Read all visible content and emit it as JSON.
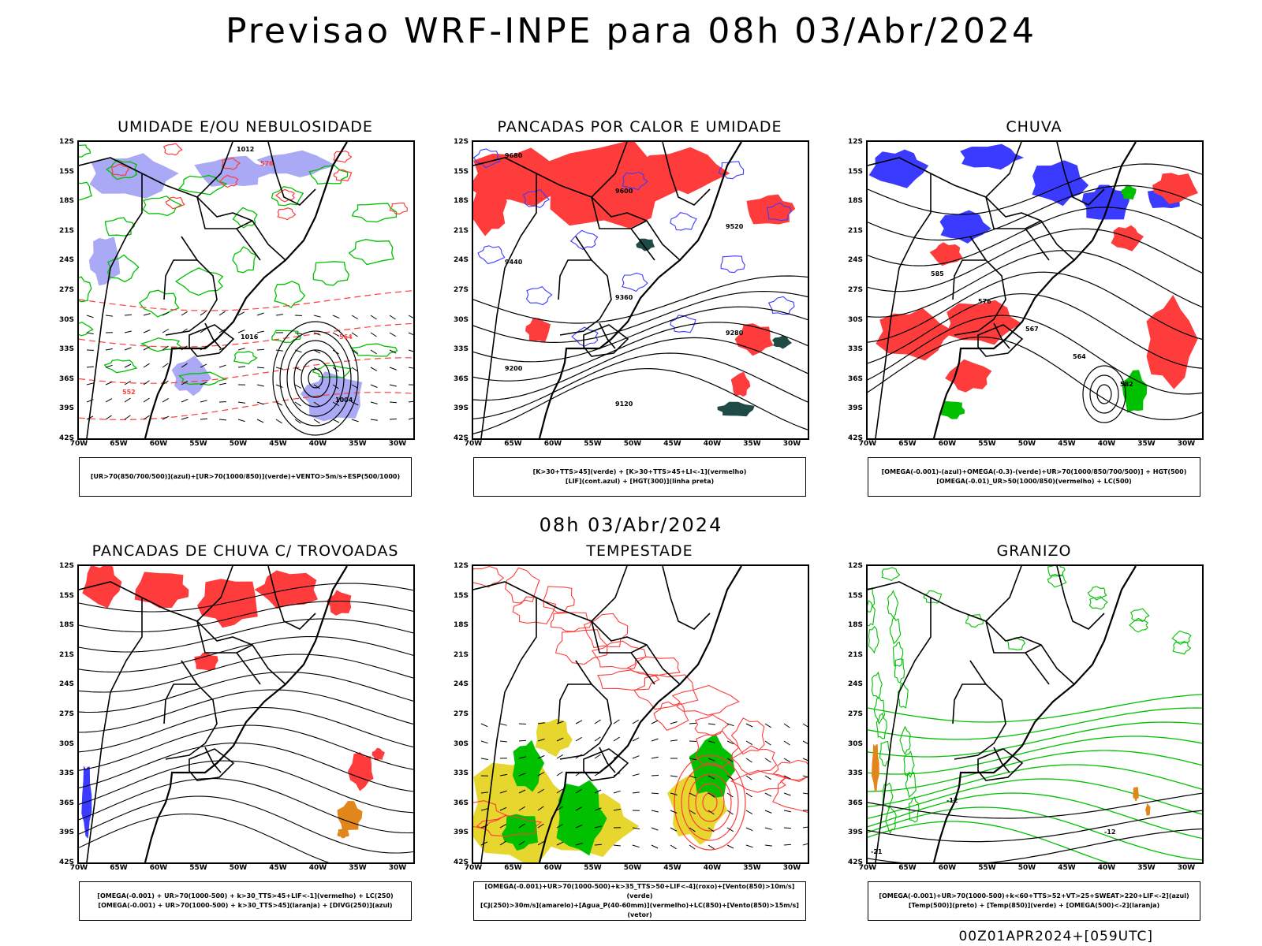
{
  "header": {
    "title": "Previsao WRF-INPE  para 08h 03/Abr/2024"
  },
  "middle": {
    "title": "08h 03/Abr/2024"
  },
  "footer": {
    "stamp": "00Z01APR2024+[059UTC]"
  },
  "axes": {
    "lat_ticks": [
      "12S",
      "15S",
      "18S",
      "21S",
      "24S",
      "27S",
      "30S",
      "33S",
      "36S",
      "39S",
      "42S"
    ],
    "lon_ticks": [
      "70W",
      "65W",
      "60W",
      "55W",
      "50W",
      "45W",
      "40W",
      "35W",
      "30W"
    ]
  },
  "colors": {
    "blue": "#3b3bff",
    "lightblue": "#a9a9f5",
    "green": "#00c000",
    "red": "#ff3c3c",
    "darkteal": "#1f4a45",
    "yellow": "#e6d62e",
    "orange": "#e0861a",
    "black": "#000000"
  },
  "panels": [
    {
      "title": "UMIDADE E/OU NEBULOSIDADE",
      "legend": [
        "[UR>70(850/700/500)](azul)+[UR>70(1000/850)](verde)+VENTO>5m/s+ESP(500/1000)"
      ],
      "labels": [
        "1012",
        "1016",
        "1004",
        "576",
        "564",
        "552"
      ]
    },
    {
      "title": "PANCADAS POR CALOR E UMIDADE",
      "legend": [
        "[K>30+TTS>45](verde) + [K>30+TTS>45+LI<-1](vermelho)",
        "[LIF](cont.azul) + [HGT(300)](linha preta)"
      ],
      "labels": [
        "9680",
        "9600",
        "9520",
        "9440",
        "9360",
        "9280",
        "9200",
        "9120"
      ]
    },
    {
      "title": "CHUVA",
      "legend": [
        "[OMEGA(-0.001)-(azul)+OMEGA(-0.3)-(verde)+UR>70(1000/850/700/500)] + HGT(500)",
        "[OMEGA(-0.01)_UR>50(1000/850)(vermelho) + LC(500)"
      ],
      "labels": [
        "585",
        "576",
        "567",
        "564",
        "582"
      ]
    },
    {
      "title": "PANCADAS DE CHUVA C/ TROVOADAS",
      "legend": [
        "[OMEGA(-0.001) + UR>70(1000-500) + k>30_TTS>45+LIF<-1](vermelho) + LC(250)",
        "[OMEGA(-0.001) + UR>70(1000-500) + k>30_TTS>45](laranja) + [DIVG(250)](azul)"
      ],
      "labels": []
    },
    {
      "title": "TEMPESTADE",
      "legend": [
        "[OMEGA(-0.001)+UR>70(1000-500)+k>35_TTS>50+LIF<-4](roxo)+[Vento(850)>10m/s](verde)",
        "[CJ(250)>30m/s](amarelo)+[Agua_P(40-60mm)](vermelho)+LC(850)+[Vento(850)>15m/s](vetor)"
      ],
      "labels": []
    },
    {
      "title": "GRANIZO",
      "legend": [
        "[OMEGA(-0.001)+UR>70(1000-500)+k<60+TTS>52+VT>25+SWEAT>220+LIF<-2](azul)",
        "[Temp(500)](preto) + [Temp(850)](verde) + [OMEGA(500)<-2](laranja)"
      ],
      "labels": [
        "-12",
        "-21"
      ]
    }
  ]
}
